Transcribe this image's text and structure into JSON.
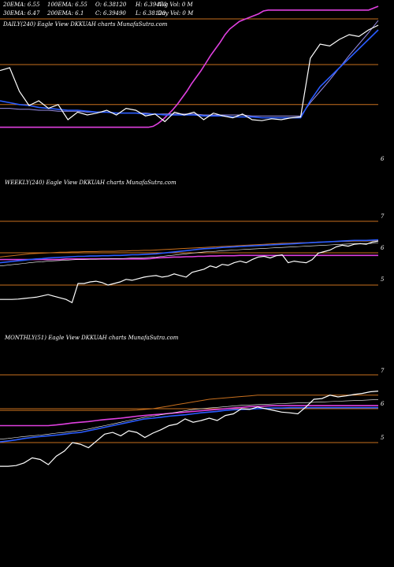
{
  "header": {
    "row1": [
      "20EMA: 6.55",
      "100EMA: 6.55",
      "O: 6.38120",
      "H: 6.39470",
      "Avg Vol: 0  M"
    ],
    "row2": [
      "30EMA: 6.47",
      "200EMA: 6.1",
      "C: 6.39490",
      "L: 6.38120",
      "Day Vol: 0  M"
    ]
  },
  "chart_data": [
    {
      "type": "line",
      "title": "DAILY(240) Eagle  View  DKKUAH charts MunafaSutra.com",
      "ytick_labels": [
        "6"
      ],
      "series": [
        {
          "color": "#ffffff",
          "values": [
            6.92,
            6.95,
            6.7,
            6.55,
            6.6,
            6.52,
            6.56,
            6.4,
            6.48,
            6.45,
            6.47,
            6.5,
            6.45,
            6.52,
            6.5,
            6.44,
            6.46,
            6.38,
            6.48,
            6.45,
            6.48,
            6.4,
            6.47,
            6.44,
            6.42,
            6.46,
            6.4,
            6.39,
            6.41,
            6.4,
            6.42,
            6.43,
            7.05,
            7.2,
            7.18,
            7.25,
            7.3,
            7.28,
            7.35,
            7.4
          ]
        },
        {
          "color": "#2a5cff",
          "values": [
            6.6,
            6.58,
            6.56,
            6.55,
            6.53,
            6.52,
            6.51,
            6.5,
            6.5,
            6.49,
            6.48,
            6.48,
            6.47,
            6.47,
            6.47,
            6.46,
            6.46,
            6.45,
            6.45,
            6.45,
            6.45,
            6.44,
            6.44,
            6.44,
            6.43,
            6.43,
            6.43,
            6.42,
            6.42,
            6.42,
            6.42,
            6.42,
            6.6,
            6.75,
            6.85,
            6.95,
            7.05,
            7.15,
            7.25,
            7.35
          ]
        },
        {
          "color": "#9b8fe8",
          "values": [
            6.52,
            6.52,
            6.51,
            6.51,
            6.5,
            6.5,
            6.49,
            6.49,
            6.49,
            6.48,
            6.48,
            6.48,
            6.47,
            6.47,
            6.47,
            6.47,
            6.46,
            6.46,
            6.46,
            6.46,
            6.46,
            6.45,
            6.45,
            6.45,
            6.45,
            6.45,
            6.44,
            6.44,
            6.44,
            6.44,
            6.44,
            6.44,
            6.58,
            6.7,
            6.82,
            6.95,
            7.08,
            7.2,
            7.32,
            7.45
          ]
        },
        {
          "color": "#e040e0",
          "values": [
            6.32,
            6.32,
            6.32,
            6.32,
            6.32,
            6.32,
            6.32,
            6.32,
            6.32,
            6.32,
            6.32,
            6.32,
            6.32,
            6.32,
            6.32,
            6.32,
            6.32,
            6.32,
            6.32,
            6.32,
            6.32,
            6.32,
            6.32,
            6.32,
            6.32,
            6.32,
            6.32,
            6.32,
            6.32,
            6.32,
            6.32,
            6.32,
            6.33,
            6.36,
            6.4,
            6.45,
            6.5,
            6.56,
            6.63,
            6.7,
            6.78,
            6.85,
            6.92,
            7.0,
            7.08,
            7.15,
            7.22,
            7.3,
            7.36,
            7.4,
            7.44,
            7.46,
            7.48,
            7.5,
            7.52,
            7.55,
            7.56,
            7.56,
            7.56,
            7.56,
            7.56,
            7.56,
            7.56,
            7.56,
            7.56,
            7.56,
            7.56,
            7.56,
            7.56,
            7.56,
            7.56,
            7.56,
            7.56,
            7.56,
            7.56,
            7.56,
            7.56,
            7.56,
            7.58,
            7.6
          ]
        },
        {
          "color": "#c8701e",
          "values": [
            6.56,
            6.56,
            6.56,
            6.56,
            6.56,
            6.56,
            6.56,
            6.56,
            6.56,
            6.56,
            6.56,
            6.56,
            6.56,
            6.56,
            6.56,
            6.56,
            6.56,
            6.56,
            6.56,
            6.56,
            6.56,
            6.56,
            6.56,
            6.56,
            6.56,
            6.56,
            6.56,
            6.56,
            6.56,
            6.56,
            6.56,
            6.56,
            6.56,
            6.56,
            6.56,
            6.56,
            6.56,
            6.56,
            6.56,
            6.56,
            6.56,
            6.56,
            6.56,
            6.56,
            6.56,
            6.56,
            6.56,
            6.56,
            6.56,
            6.56,
            6.56,
            6.56,
            6.56,
            6.56,
            6.56,
            6.56,
            6.56,
            6.56,
            6.56,
            6.56,
            6.56,
            6.56,
            6.56,
            6.56,
            6.56,
            6.56,
            6.56,
            6.56,
            6.56,
            6.56,
            6.56,
            6.56,
            6.56,
            6.56,
            6.56,
            6.56,
            6.56,
            6.56,
            6.56,
            6.56
          ]
        }
      ]
    },
    {
      "type": "line",
      "title": "WEEKLY(240) Eagle  View  DKKUAH charts MunafaSutra.com",
      "ytick_labels": [
        "7",
        "6",
        "5"
      ],
      "series": [
        {
          "color": "#ffffff",
          "values": [
            4.55,
            4.55,
            4.55,
            4.56,
            4.58,
            4.6,
            4.62,
            4.66,
            4.7,
            4.65,
            4.6,
            4.55,
            4.45,
            5.05,
            5.05,
            5.1,
            5.12,
            5.08,
            5.0,
            5.05,
            5.1,
            5.18,
            5.15,
            5.2,
            5.25,
            5.28,
            5.3,
            5.25,
            5.28,
            5.35,
            5.3,
            5.25,
            5.4,
            5.45,
            5.5,
            5.6,
            5.55,
            5.65,
            5.62,
            5.7,
            5.75,
            5.7,
            5.8,
            5.88,
            5.9,
            5.85,
            5.92,
            5.95,
            5.7,
            5.75,
            5.72,
            5.7,
            5.8,
            6.0,
            6.05,
            6.1,
            6.2,
            6.25,
            6.22,
            6.28,
            6.3,
            6.28,
            6.35,
            6.38
          ]
        },
        {
          "color": "#2a5cff",
          "values": [
            5.7,
            5.72,
            5.74,
            5.76,
            5.78,
            5.8,
            5.82,
            5.83,
            5.85,
            5.86,
            5.87,
            5.88,
            5.89,
            5.9,
            5.9,
            5.91,
            5.91,
            5.92,
            5.92,
            5.93,
            5.93,
            5.94,
            5.95,
            5.95,
            5.96,
            5.97,
            5.98,
            6.0,
            6.02,
            6.04,
            6.06,
            6.08,
            6.1,
            6.12,
            6.14,
            6.15,
            6.16,
            6.18,
            6.19,
            6.2,
            6.21,
            6.22,
            6.23,
            6.24,
            6.25,
            6.26,
            6.27,
            6.28,
            6.29,
            6.3,
            6.31,
            6.32,
            6.33,
            6.34,
            6.35,
            6.36,
            6.37,
            6.38,
            6.39,
            6.4,
            6.4,
            6.4,
            6.41,
            6.42
          ]
        },
        {
          "color": "#ffffff",
          "values": [
            5.6,
            5.62,
            5.64,
            5.66,
            5.68,
            5.7,
            5.72,
            5.73,
            5.75,
            5.76,
            5.77,
            5.78,
            5.79,
            5.8,
            5.8,
            5.81,
            5.81,
            5.82,
            5.82,
            5.83,
            5.83,
            5.84,
            5.85,
            5.85,
            5.86,
            5.87,
            5.88,
            5.9,
            5.92,
            5.94,
            5.96,
            5.98,
            6.0,
            6.02,
            6.04,
            6.05,
            6.06,
            6.08,
            6.09,
            6.1,
            6.11,
            6.12,
            6.13,
            6.14,
            6.15,
            6.16,
            6.17,
            6.18,
            6.19,
            6.2,
            6.21,
            6.22,
            6.23,
            6.24,
            6.25,
            6.26,
            6.27,
            6.28,
            6.29,
            6.3,
            6.3,
            6.3,
            6.31,
            6.32
          ]
        },
        {
          "color": "#e040e0",
          "values": [
            5.8,
            5.8,
            5.8,
            5.8,
            5.8,
            5.8,
            5.8,
            5.8,
            5.8,
            5.8,
            5.8,
            5.82,
            5.82,
            5.82,
            5.82,
            5.82,
            5.82,
            5.82,
            5.82,
            5.82,
            5.82,
            5.82,
            5.82,
            5.82,
            5.82,
            5.83,
            5.85,
            5.86,
            5.87,
            5.88,
            5.88,
            5.89,
            5.89,
            5.9,
            5.9,
            5.91,
            5.91,
            5.92,
            5.92,
            5.92,
            5.93,
            5.93,
            5.93,
            5.93,
            5.93,
            5.93,
            5.93,
            5.93,
            5.93,
            5.93,
            5.93,
            5.93,
            5.93,
            5.93,
            5.93,
            5.93,
            5.93,
            5.93,
            5.93,
            5.93,
            5.93,
            5.93,
            5.93,
            5.93
          ]
        },
        {
          "color": "#c8701e",
          "values": [
            5.88,
            5.9,
            5.92,
            5.94,
            5.96,
            5.98,
            5.99,
            6.0,
            6.01,
            6.02,
            6.03,
            6.03,
            6.04,
            6.04,
            6.05,
            6.05,
            6.05,
            6.06,
            6.06,
            6.06,
            6.07,
            6.07,
            6.08,
            6.08,
            6.09,
            6.09,
            6.1,
            6.11,
            6.12,
            6.13,
            6.14,
            6.15,
            6.16,
            6.17,
            6.18,
            6.19,
            6.2,
            6.21,
            6.22,
            6.23,
            6.24,
            6.25,
            6.26,
            6.27,
            6.28,
            6.29,
            6.3,
            6.31,
            6.31,
            6.32,
            6.33,
            6.33,
            6.34,
            6.35,
            6.35,
            6.36,
            6.36,
            6.37,
            6.37,
            6.38,
            6.38,
            6.38,
            6.39,
            6.4
          ]
        }
      ]
    },
    {
      "type": "line",
      "title": "MONTHLY(51) Eagle  View  DKKUAH charts MunafaSutra.com",
      "ytick_labels": [
        "7",
        "6",
        "5"
      ],
      "series": [
        {
          "color": "#ffffff",
          "values": [
            4.3,
            4.3,
            4.32,
            4.4,
            4.55,
            4.5,
            4.35,
            4.6,
            4.75,
            5.0,
            4.95,
            4.85,
            5.05,
            5.25,
            5.3,
            5.2,
            5.35,
            5.3,
            5.15,
            5.28,
            5.38,
            5.5,
            5.55,
            5.7,
            5.6,
            5.65,
            5.72,
            5.65,
            5.8,
            5.85,
            6.0,
            5.98,
            6.05,
            6.0,
            5.95,
            5.9,
            5.88,
            5.85,
            6.05,
            6.28,
            6.3,
            6.4,
            6.35,
            6.38,
            6.42,
            6.45,
            6.5,
            6.52
          ]
        },
        {
          "color": "#2a5cff",
          "values": [
            5.02,
            5.05,
            5.08,
            5.12,
            5.15,
            5.18,
            5.2,
            5.22,
            5.25,
            5.28,
            5.3,
            5.35,
            5.4,
            5.45,
            5.5,
            5.55,
            5.6,
            5.65,
            5.7,
            5.72,
            5.75,
            5.78,
            5.8,
            5.82,
            5.85,
            5.88,
            5.9,
            5.92,
            5.95,
            5.97,
            5.98,
            5.99,
            6.0,
            6.01,
            6.02,
            6.02,
            6.03,
            6.03,
            6.03,
            6.03,
            6.03,
            6.03,
            6.03,
            6.03,
            6.03,
            6.03,
            6.03,
            6.03
          ]
        },
        {
          "color": "#ffffff",
          "values": [
            5.1,
            5.12,
            5.15,
            5.18,
            5.2,
            5.22,
            5.25,
            5.28,
            5.3,
            5.33,
            5.36,
            5.4,
            5.45,
            5.5,
            5.55,
            5.6,
            5.65,
            5.7,
            5.75,
            5.78,
            5.82,
            5.86,
            5.9,
            5.94,
            5.98,
            6.0,
            6.02,
            6.04,
            6.06,
            6.08,
            6.1,
            6.11,
            6.12,
            6.13,
            6.14,
            6.15,
            6.16,
            6.17,
            6.18,
            6.19,
            6.2,
            6.21,
            6.22,
            6.23,
            6.24,
            6.25,
            6.26,
            6.27
          ]
        },
        {
          "color": "#e040e0",
          "values": [
            5.5,
            5.5,
            5.5,
            5.5,
            5.5,
            5.5,
            5.5,
            5.52,
            5.55,
            5.58,
            5.6,
            5.62,
            5.65,
            5.68,
            5.7,
            5.72,
            5.75,
            5.78,
            5.8,
            5.82,
            5.84,
            5.86,
            5.88,
            5.9,
            5.92,
            5.94,
            5.96,
            5.98,
            6.0,
            6.02,
            6.04,
            6.06,
            6.07,
            6.08,
            6.09,
            6.09,
            6.09,
            6.09,
            6.09,
            6.09,
            6.09,
            6.09,
            6.09,
            6.09,
            6.09,
            6.09,
            6.09,
            6.09
          ]
        },
        {
          "color": "#c8701e",
          "values": [
            5.95,
            5.95,
            5.95,
            5.95,
            5.95,
            5.95,
            5.95,
            5.95,
            5.95,
            5.95,
            5.95,
            5.95,
            5.95,
            5.95,
            5.95,
            5.95,
            5.95,
            5.96,
            5.98,
            6.0,
            6.04,
            6.08,
            6.12,
            6.16,
            6.2,
            6.24,
            6.28,
            6.3,
            6.32,
            6.34,
            6.36,
            6.38,
            6.4,
            6.4,
            6.4,
            6.4,
            6.4,
            6.4,
            6.4,
            6.4,
            6.4,
            6.4,
            6.4,
            6.4,
            6.4,
            6.4,
            6.4,
            6.4
          ]
        }
      ]
    }
  ],
  "colors": {
    "background": "#000000",
    "text": "#ffffff",
    "hline": "#c8701e"
  }
}
